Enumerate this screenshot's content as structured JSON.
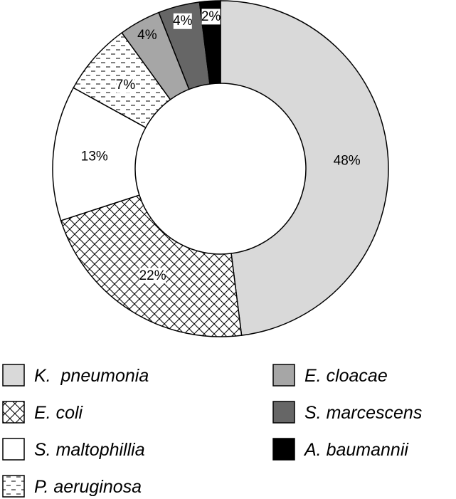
{
  "chart_data": {
    "type": "pie",
    "variant": "donut",
    "title": "",
    "slices": [
      {
        "label": "K.  pneumonia",
        "value": 48,
        "text": "48%",
        "fill": "#d9d9d9",
        "pattern": "solid"
      },
      {
        "label": "E. coli",
        "value": 22,
        "text": "22%",
        "fill": "#ffffff",
        "pattern": "crosshatch"
      },
      {
        "label": "S. maltophillia",
        "value": 13,
        "text": "13%",
        "fill": "#ffffff",
        "pattern": "solid"
      },
      {
        "label": "P. aeruginosa",
        "value": 7,
        "text": "7%",
        "fill": "#ffffff",
        "pattern": "dashes"
      },
      {
        "label": "E. cloacae",
        "value": 4,
        "text": "4%",
        "fill": "#a6a6a6",
        "pattern": "solid"
      },
      {
        "label": "S. marcescens",
        "value": 4,
        "text": "4%",
        "fill": "#666666",
        "pattern": "solid"
      },
      {
        "label": "A. baumannii",
        "value": 2,
        "text": "2%",
        "fill": "#000000",
        "pattern": "solid"
      }
    ],
    "legend_position": "bottom",
    "legend_columns": 2
  }
}
